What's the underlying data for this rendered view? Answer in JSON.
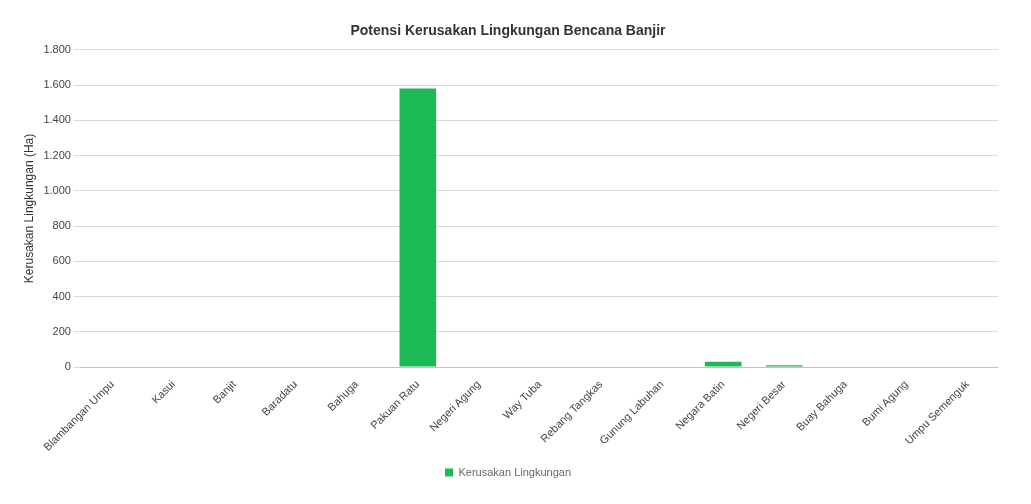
{
  "chart_data": {
    "type": "bar",
    "title": "Potensi Kerusakan Lingkungan Bencana Banjir",
    "ylabel": "Kerusakan Lingkungan (Ha)",
    "categories": [
      "Blambangan Umpu",
      "Kasui",
      "Banjit",
      "Baradatu",
      "Bahuga",
      "Pakuan Ratu",
      "Negeri Agung",
      "Way Tuba",
      "Rebang Tangkas",
      "Gunung Labuhan",
      "Negara Batin",
      "Negeri Besar",
      "Buay Bahuga",
      "Bumi Agung",
      "Umpu Semenguk"
    ],
    "series": [
      {
        "name": "Kerusakan Lingkungan",
        "color": "#1db954",
        "values": [
          0,
          0,
          0,
          0,
          0,
          1580,
          0,
          0,
          0,
          0,
          30,
          10,
          0,
          0,
          0
        ]
      }
    ],
    "ylim": [
      0,
      1800
    ],
    "yticks": [
      0,
      200,
      400,
      600,
      800,
      {
        "value": 1000,
        "label": "1.000"
      },
      {
        "value": 1200,
        "label": "1.200"
      },
      {
        "value": 1400,
        "label": "1.400"
      },
      {
        "value": 1600,
        "label": "1.600"
      },
      {
        "value": 1800,
        "label": "1.800"
      }
    ],
    "grid": "y",
    "legend": "bottom"
  }
}
